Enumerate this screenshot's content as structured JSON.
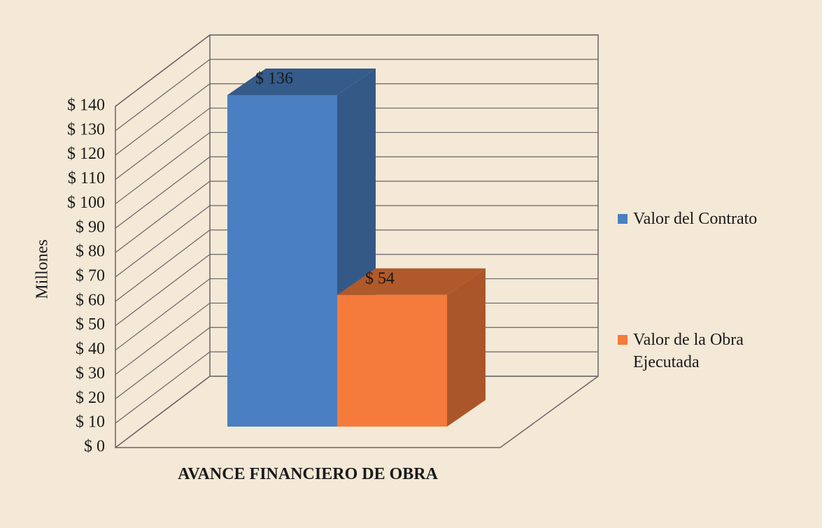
{
  "chart_data": {
    "type": "bar3d",
    "categories": [
      "AVANCE FINANCIERO DE OBRA"
    ],
    "series": [
      {
        "name": "Valor del Contrato",
        "color": "#4a7fc1",
        "values": [
          136
        ],
        "value_labels": [
          "$ 136"
        ]
      },
      {
        "name": "Valor de la Obra Ejecutada",
        "color": "#f47b3c",
        "values": [
          54
        ],
        "value_labels": [
          "$ 54"
        ]
      }
    ],
    "ylabel": "Millones",
    "ylim": [
      0,
      140
    ],
    "yticks": [
      {
        "value": 0,
        "label": "$ 0"
      },
      {
        "value": 10,
        "label": "$ 10"
      },
      {
        "value": 20,
        "label": "$ 20"
      },
      {
        "value": 30,
        "label": "$ 30"
      },
      {
        "value": 40,
        "label": "$ 40"
      },
      {
        "value": 50,
        "label": "$ 50"
      },
      {
        "value": 60,
        "label": "$ 60"
      },
      {
        "value": 70,
        "label": "$ 70"
      },
      {
        "value": 80,
        "label": "$ 80"
      },
      {
        "value": 90,
        "label": "$ 90"
      },
      {
        "value": 100,
        "label": "$ 100"
      },
      {
        "value": 110,
        "label": "$ 110"
      },
      {
        "value": 120,
        "label": "$ 120"
      },
      {
        "value": 130,
        "label": "$ 130"
      },
      {
        "value": 140,
        "label": "$ 140"
      }
    ],
    "grid": true,
    "legend": "right"
  }
}
